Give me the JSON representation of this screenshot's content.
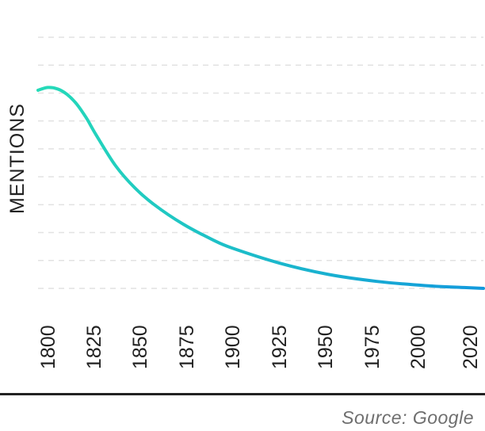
{
  "chart_data": {
    "type": "line",
    "title": "",
    "xlabel": "",
    "ylabel": "MENTIONS",
    "x_ticks": [
      "1800",
      "1825",
      "1850",
      "1875",
      "1900",
      "1925",
      "1950",
      "1975",
      "2000",
      "2020"
    ],
    "x": [
      1800,
      1805,
      1810,
      1815,
      1820,
      1825,
      1830,
      1840,
      1850,
      1860,
      1875,
      1890,
      1900,
      1925,
      1950,
      1975,
      2000,
      2020,
      2030
    ],
    "series": [
      {
        "values": [
          7.1,
          7.2,
          7.15,
          6.95,
          6.6,
          6.1,
          5.5,
          4.4,
          3.6,
          3.0,
          2.3,
          1.75,
          1.45,
          0.9,
          0.5,
          0.25,
          0.1,
          0.03,
          0.0
        ]
      }
    ],
    "ylim": [
      0,
      9
    ],
    "grid": true,
    "colors": {
      "line_start": "#25dbb8",
      "line_end": "#1299dd"
    }
  },
  "footer": {
    "source": "Source: Google"
  }
}
